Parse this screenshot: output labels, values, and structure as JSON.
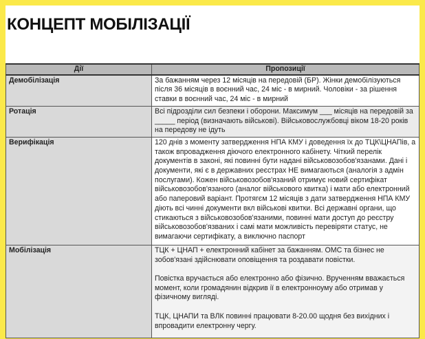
{
  "title": "КОНЦЕПТ МОБІЛІЗАЦІЇ",
  "table": {
    "headers": [
      "Дії",
      "Пропозиції"
    ],
    "rows": [
      {
        "action": "Демобілізація",
        "proposals": [
          "За бажанням через 12 місяців на передовій (БР). Жінки демобілізуються після 36 місяців в воєнний час, 24 міс - в мирний.  Чоловіки - за рішення ставки в воєнний час, 24 міс - в мирний"
        ]
      },
      {
        "action": "Ротація",
        "proposals": [
          "Всі підрозділи сил безпеки і оборони. Максимум ___ місяців на передовій за _____ період (визначають військові). Військовослужбовці  віком 18-20 років на передову не ідуть"
        ]
      },
      {
        "action": "Верифікація",
        "proposals": [
          "120 днів з моменту затвердження НПА КМУ  і доведення їх до ТЦК\\ЦНАПів, а також впровадження діючого електронного кабінету. Чіткий перелік документів в законі, які повинні бути надані військовозобов'язанами. Дані і документи, які є в державних реєстрах НЕ вимагаються (аналогія з адмін послугами). Кожен військовозобов'язаний отримує новий сертифікат військовозобов'язаного (аналог військового квитка) і мати або електронний або паперовий варіант. Протягєм 12 місяців з дати затвердження НПА КМУ діють всі чинні документи вкл військові квитки. Всі державні органи, що стикаються з військовозобов'язаними, повинні мати доступ до реєстру військовозобов'язваних і самі мати можливість перевіряти статус, не вимагаючи сертифікату, а виключно паспорт"
        ]
      },
      {
        "action": "Мобілізація",
        "proposals": [
          "ТЦК + ЦНАП + електронний кабінет за бажанням. ОМС та бізнес не зобов'язані здійснювати оповіщення та роздавати повістки.",
          "Повістка вручається або електронно або фізично. Врученням вважається момент, коли громадянин відкрив ії в електронноуму або отримав у фізичному вигляді.",
          "ТЦК, ЦНАПИ та ВЛК повинні працювати 8-20.00 щодня без вихідних і впровадити електронну чергу."
        ]
      }
    ]
  },
  "colors": {
    "frame": "#fbe94a",
    "header": "#b9b9b9",
    "action_cell": "#d9d9d9"
  }
}
